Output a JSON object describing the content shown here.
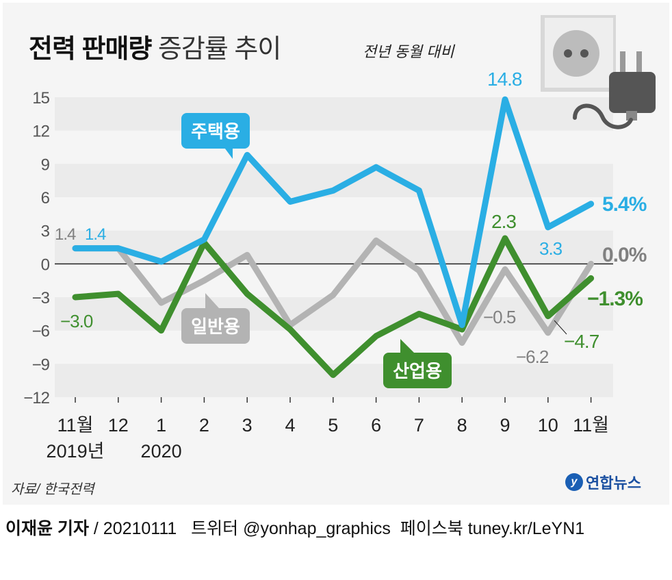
{
  "header": {
    "title_bold": "전력 판매량",
    "title_light": "증감률 추이",
    "subtitle": "전년 동월 대비"
  },
  "source": "자료/ 한국전력",
  "logo": {
    "text": "연합뉴스",
    "mark": "y"
  },
  "footer": {
    "reporter": "이재윤 기자",
    "rest": " / 20210111   트위터 @yonhap_graphics  페이스북 tuney.kr/LeYN1"
  },
  "chart_data": {
    "type": "line",
    "title": "전력 판매량 증감률 추이",
    "subtitle": "전년 동월 대비",
    "unit": "%",
    "ylim": [
      -12,
      15
    ],
    "yticks": [
      15,
      12,
      9,
      6,
      3,
      0,
      -3,
      -6,
      -9,
      -12
    ],
    "ytick_labels": [
      "15",
      "12",
      "9",
      "6",
      "3",
      "0",
      "−3",
      "−6",
      "−9",
      "−12"
    ],
    "categories": [
      "11월",
      "12",
      "1",
      "2",
      "3",
      "4",
      "5",
      "6",
      "7",
      "8",
      "9",
      "10",
      "11월"
    ],
    "category_sublabels": [
      "2019년",
      "",
      "2020",
      "",
      "",
      "",
      "",
      "",
      "",
      "",
      "",
      "",
      ""
    ],
    "series": [
      {
        "name": "주택용",
        "color": "#2aaee4",
        "values": [
          1.4,
          1.4,
          0.2,
          2.2,
          9.8,
          5.6,
          6.6,
          8.7,
          6.6,
          -5.5,
          14.8,
          3.3,
          5.4
        ]
      },
      {
        "name": "일반용",
        "color": "#b3b3b3",
        "values": [
          1.4,
          1.4,
          -3.5,
          -1.5,
          0.8,
          -5.5,
          -2.8,
          2.1,
          -0.6,
          -7.1,
          -0.5,
          -6.2,
          0.0
        ]
      },
      {
        "name": "산업용",
        "color": "#3f8f2e",
        "values": [
          -3.0,
          -2.7,
          -6.0,
          1.9,
          -2.7,
          -5.9,
          -10.0,
          -6.5,
          -4.5,
          -5.9,
          2.3,
          -4.7,
          -1.3
        ]
      }
    ],
    "data_labels": [
      {
        "text": "1.4",
        "color": "#808080"
      },
      {
        "text": "1.4",
        "color": "#2aaee4"
      },
      {
        "text": "−3.0",
        "color": "#3f8f2e"
      },
      {
        "text": "14.8",
        "color": "#2aaee4"
      },
      {
        "text": "2.3",
        "color": "#3f8f2e"
      },
      {
        "text": "3.3",
        "color": "#2aaee4"
      },
      {
        "text": "−0.5",
        "color": "#808080"
      },
      {
        "text": "−6.2",
        "color": "#808080"
      },
      {
        "text": "−4.7",
        "color": "#3f8f2e"
      },
      {
        "text": "5.4%",
        "color": "#2aaee4"
      },
      {
        "text": "0.0%",
        "color": "#808080"
      },
      {
        "text": "−1.3%",
        "color": "#3f8f2e"
      }
    ],
    "legend_placement": "inline callouts"
  }
}
